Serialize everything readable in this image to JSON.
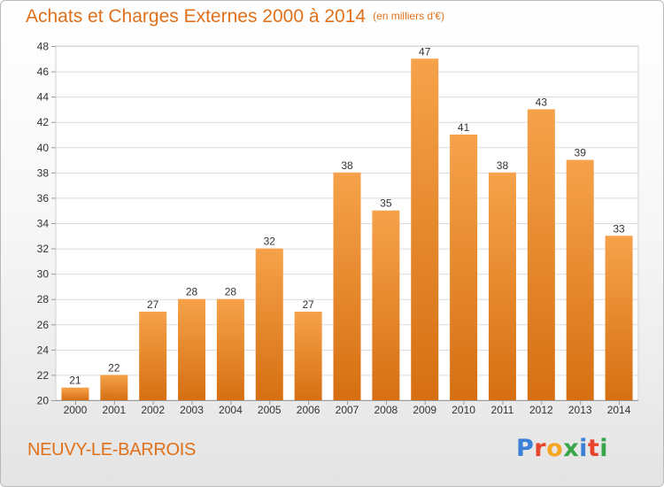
{
  "header": {
    "title": "Achats et Charges Externes 2000 à 2014",
    "unit": "(en milliers d'€)"
  },
  "footer": {
    "city": "NEUVY-LE-BARROIS",
    "logo_letters": [
      "P",
      "r",
      "o",
      "x",
      "i",
      "t",
      "i"
    ],
    "logo_colors": [
      "#3b7fd6",
      "#e8432c",
      "#f5a623",
      "#3aa64a",
      "#3b7fd6",
      "#e8432c",
      "#3aa64a"
    ]
  },
  "colors": {
    "bar_top": "#f6a24a",
    "bar_bottom": "#d66f12",
    "title": "#e0701a",
    "grid": "#dcdcdc"
  },
  "chart_data": {
    "type": "bar",
    "title": "Achats et Charges Externes 2000 à 2014",
    "subtitle": "(en milliers d'€)",
    "xlabel": "",
    "ylabel": "",
    "categories": [
      "2000",
      "2001",
      "2002",
      "2003",
      "2004",
      "2005",
      "2006",
      "2007",
      "2008",
      "2009",
      "2010",
      "2011",
      "2012",
      "2013",
      "2014"
    ],
    "values": [
      21,
      22,
      27,
      28,
      28,
      32,
      27,
      38,
      35,
      47,
      41,
      38,
      43,
      39,
      33
    ],
    "ylim": [
      20,
      48
    ],
    "yticks": [
      20,
      22,
      24,
      26,
      28,
      30,
      32,
      34,
      36,
      38,
      40,
      42,
      44,
      46,
      48
    ],
    "grid": true,
    "legend": "none"
  }
}
